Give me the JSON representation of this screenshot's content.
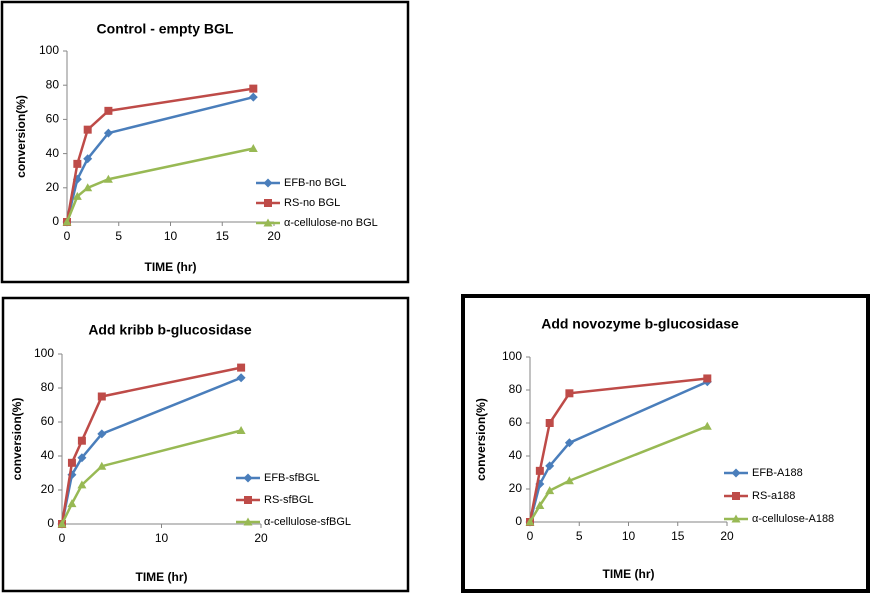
{
  "chart_data": [
    {
      "type": "line",
      "title": "Control - empty BGL",
      "x_label": "TIME (hr)",
      "y_label": "conversion(%)",
      "x": [
        0,
        1,
        2,
        4,
        18
      ],
      "xlim": [
        0,
        20
      ],
      "xticks": [
        0,
        5,
        10,
        15,
        20
      ],
      "ylim": [
        0,
        100
      ],
      "yticks": [
        0,
        20,
        40,
        60,
        80,
        100
      ],
      "series": [
        {
          "name": "EFB-no BGL",
          "color": "#4a7ebb",
          "values": [
            0,
            25,
            37,
            52,
            73
          ]
        },
        {
          "name": "RS-no BGL",
          "color": "#be4b48",
          "values": [
            0,
            34,
            54,
            65,
            78
          ]
        },
        {
          "name": "α-cellulose-no BGL",
          "color": "#98b954",
          "values": [
            0,
            15,
            20,
            25,
            43
          ]
        }
      ]
    },
    {
      "type": "line",
      "title": "Add kribb b-glucosidase",
      "x_label": "TIME (hr)",
      "y_label": "conversion(%)",
      "x": [
        0,
        1,
        2,
        4,
        18
      ],
      "xlim": [
        0,
        20
      ],
      "xticks": [
        0,
        10,
        20
      ],
      "ylim": [
        0,
        100
      ],
      "yticks": [
        0,
        20,
        40,
        60,
        80,
        100
      ],
      "series": [
        {
          "name": "EFB-sfBGL",
          "color": "#4a7ebb",
          "values": [
            0,
            29,
            39,
            53,
            86
          ]
        },
        {
          "name": "RS-sfBGL",
          "color": "#be4b48",
          "values": [
            0,
            36,
            49,
            75,
            92
          ]
        },
        {
          "name": "α-cellulose-sfBGL",
          "color": "#98b954",
          "values": [
            0,
            12,
            23,
            34,
            55
          ]
        }
      ]
    },
    {
      "type": "line",
      "title": "Add novozyme b-glucosidase",
      "x_label": "TIME (hr)",
      "y_label": "conversion(%)",
      "x": [
        0,
        1,
        2,
        4,
        18
      ],
      "xlim": [
        0,
        20
      ],
      "xticks": [
        0,
        5,
        10,
        15,
        20
      ],
      "ylim": [
        0,
        100
      ],
      "yticks": [
        0,
        20,
        40,
        60,
        80,
        100
      ],
      "series": [
        {
          "name": "EFB-A188",
          "color": "#4a7ebb",
          "values": [
            0,
            23,
            34,
            48,
            85
          ]
        },
        {
          "name": "RS-a188",
          "color": "#be4b48",
          "values": [
            0,
            31,
            60,
            78,
            87
          ]
        },
        {
          "name": "α-cellulose-A188",
          "color": "#98b954",
          "values": [
            0,
            10,
            19,
            25,
            58
          ]
        }
      ]
    }
  ]
}
